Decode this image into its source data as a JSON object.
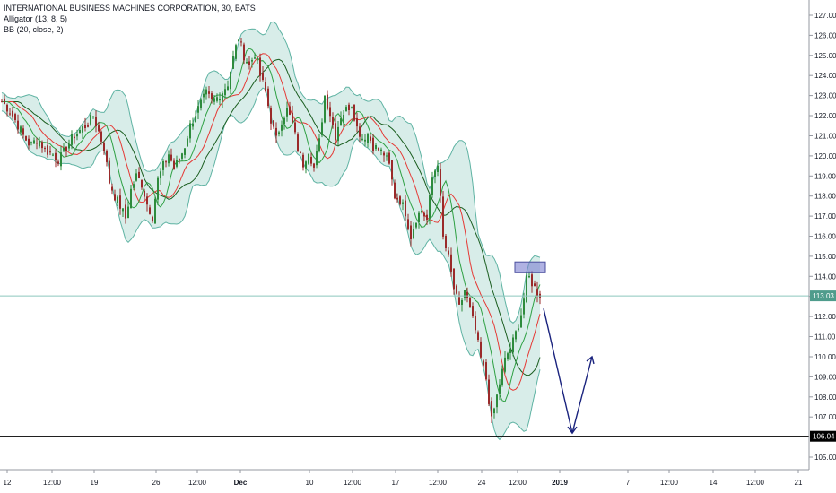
{
  "legend": {
    "title": "INTERNATIONAL BUSINESS MACHINES CORPORATION, 30, BATS",
    "indicator1": "Alligator (13, 8, 5)",
    "indicator2": "BB (20, close, 2)"
  },
  "colors": {
    "up": "#2e8b3d",
    "down": "#9a2a2a",
    "bb_fill": "#c7e6df",
    "bb_line": "#5fb3a3",
    "jaw": "#1b5e20",
    "teeth": "#e53935",
    "lips": "#2ea043",
    "projection": "#1a237e",
    "price_line": "#8cc7be",
    "price_tag": "#4f9c8c",
    "support_tag": "#000000",
    "rect": "#4a4e9e"
  },
  "chart_data": {
    "type": "candlestick",
    "y_axis": {
      "range": [
        104.5,
        127.3
      ],
      "ticks": [
        "105.00",
        "106.00",
        "107.00",
        "108.00",
        "109.00",
        "110.00",
        "111.00",
        "112.00",
        "113.00",
        "114.00",
        "115.00",
        "116.00",
        "117.00",
        "118.00",
        "119.00",
        "120.00",
        "121.00",
        "122.00",
        "123.00",
        "124.00",
        "125.00",
        "126.00",
        "127.00"
      ]
    },
    "x_axis": {
      "ticks": [
        "12",
        "12:00",
        "19",
        "26",
        "12:00",
        "Dec",
        "10",
        "12:00",
        "17",
        "12:00",
        "24",
        "12:00",
        "2019",
        "7",
        "12:00",
        "14",
        "12:00",
        "21"
      ]
    },
    "current_price": "113.03",
    "support_price": "106.04",
    "grid": false,
    "close_path": [
      [
        0,
        122.8
      ],
      [
        10,
        122.3
      ],
      [
        18,
        121.7
      ],
      [
        26,
        121.0
      ],
      [
        34,
        120.5
      ],
      [
        42,
        120.9
      ],
      [
        50,
        120.3
      ],
      [
        58,
        120.1
      ],
      [
        66,
        119.8
      ],
      [
        74,
        120.4
      ],
      [
        82,
        121.0
      ],
      [
        90,
        121.3
      ],
      [
        98,
        121.6
      ],
      [
        104,
        122.0
      ],
      [
        110,
        121.2
      ],
      [
        116,
        120.4
      ],
      [
        122,
        118.7
      ],
      [
        128,
        118.0
      ],
      [
        134,
        117.5
      ],
      [
        140,
        116.9
      ],
      [
        146,
        118.3
      ],
      [
        152,
        119.0
      ],
      [
        158,
        118.6
      ],
      [
        164,
        117.6
      ],
      [
        170,
        117.0
      ],
      [
        176,
        118.8
      ],
      [
        182,
        119.5
      ],
      [
        188,
        120.1
      ],
      [
        194,
        119.4
      ],
      [
        200,
        119.8
      ],
      [
        206,
        120.5
      ],
      [
        212,
        121.5
      ],
      [
        218,
        122.1
      ],
      [
        224,
        122.6
      ],
      [
        230,
        123.1
      ],
      [
        236,
        122.7
      ],
      [
        242,
        122.9
      ],
      [
        248,
        123.2
      ],
      [
        254,
        123.6
      ],
      [
        260,
        124.9
      ],
      [
        266,
        125.9
      ],
      [
        272,
        125.0
      ],
      [
        278,
        124.5
      ],
      [
        284,
        125.1
      ],
      [
        290,
        124.0
      ],
      [
        296,
        123.2
      ],
      [
        302,
        121.8
      ],
      [
        308,
        120.8
      ],
      [
        314,
        121.8
      ],
      [
        320,
        122.3
      ],
      [
        326,
        121.6
      ],
      [
        332,
        120.4
      ],
      [
        338,
        119.6
      ],
      [
        344,
        120.3
      ],
      [
        350,
        119.4
      ],
      [
        356,
        120.7
      ],
      [
        362,
        123.0
      ],
      [
        368,
        122.1
      ],
      [
        374,
        121.0
      ],
      [
        380,
        122.0
      ],
      [
        386,
        122.3
      ],
      [
        392,
        122.6
      ],
      [
        398,
        121.4
      ],
      [
        404,
        120.9
      ],
      [
        410,
        121.1
      ],
      [
        416,
        120.5
      ],
      [
        422,
        120.3
      ],
      [
        428,
        120.1
      ],
      [
        434,
        119.5
      ],
      [
        440,
        118.0
      ],
      [
        446,
        117.8
      ],
      [
        452,
        117.2
      ],
      [
        458,
        116.0
      ],
      [
        464,
        116.9
      ],
      [
        470,
        117.3
      ],
      [
        476,
        116.8
      ],
      [
        482,
        118.9
      ],
      [
        488,
        119.7
      ],
      [
        494,
        115.9
      ],
      [
        500,
        114.9
      ],
      [
        506,
        113.4
      ],
      [
        512,
        112.4
      ],
      [
        518,
        113.3
      ],
      [
        524,
        112.3
      ],
      [
        530,
        111.3
      ],
      [
        536,
        109.9
      ],
      [
        542,
        108.9
      ],
      [
        548,
        106.8
      ],
      [
        552,
        107.6
      ],
      [
        558,
        108.9
      ],
      [
        564,
        110.0
      ],
      [
        570,
        110.5
      ],
      [
        576,
        111.3
      ],
      [
        582,
        112.3
      ],
      [
        588,
        114.1
      ],
      [
        594,
        113.6
      ],
      [
        600,
        113.1
      ],
      [
        604,
        113.0
      ]
    ],
    "projection": [
      {
        "value": 112.4,
        "time_index": 0
      },
      {
        "value": 106.2,
        "time_index": 1
      },
      {
        "value": 110.0,
        "time_index": 2
      }
    ],
    "highlight_zone": {
      "low": 114.3,
      "high": 114.6
    }
  }
}
